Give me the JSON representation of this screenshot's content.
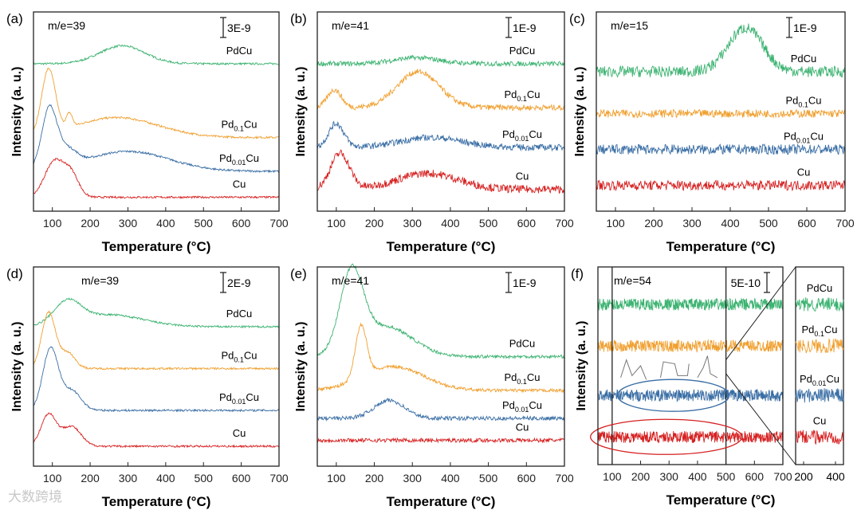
{
  "chart_data": [
    {
      "panel": "(a)",
      "type": "line",
      "annotation": "m/e=39",
      "scalebar": "3E-9",
      "xlabel": "Temperature (°C)",
      "ylabel": "Intensity (a. u.)",
      "xlim": [
        50,
        700
      ],
      "ylim": [
        0,
        10
      ],
      "xticks": [
        100,
        200,
        300,
        400,
        500,
        600,
        700
      ],
      "series": [
        {
          "name": "PdCu",
          "color": "#3cb371",
          "base": 7.4,
          "noise": 0.05,
          "peaks": [
            [
              285,
              0.9,
              60
            ]
          ]
        },
        {
          "name": "Pd0.1Cu",
          "color": "#f0a030",
          "base": 3.7,
          "noise": 0.05,
          "peaks": [
            [
              90,
              3.2,
              18
            ],
            [
              145,
              0.7,
              8
            ],
            [
              270,
              1.0,
              110
            ]
          ]
        },
        {
          "name": "Pd0.01Cu",
          "color": "#3a6ea5",
          "base": 2.0,
          "noise": 0.05,
          "peaks": [
            [
              92,
              3.0,
              20
            ],
            [
              140,
              0.8,
              25
            ],
            [
              300,
              1.0,
              110
            ]
          ]
        },
        {
          "name": "Cu",
          "color": "#d62020",
          "base": 0.7,
          "noise": 0.05,
          "peaks": [
            [
              105,
              1.8,
              25
            ],
            [
              150,
              1.1,
              20
            ]
          ]
        }
      ]
    },
    {
      "panel": "(b)",
      "type": "line",
      "annotation": "m/e=41",
      "scalebar": "1E-9",
      "xlabel": "Temperature (°C)",
      "ylabel": "Intensity (a. u.)",
      "xlim": [
        50,
        700
      ],
      "ylim": [
        0,
        10
      ],
      "xticks": [
        100,
        200,
        300,
        400,
        500,
        600,
        700
      ],
      "series": [
        {
          "name": "PdCu",
          "color": "#3cb371",
          "base": 7.4,
          "noise": 0.12,
          "peaks": [
            [
              310,
              0.3,
              60
            ]
          ]
        },
        {
          "name": "Pd0.1Cu",
          "color": "#f0a030",
          "base": 5.2,
          "noise": 0.14,
          "peaks": [
            [
              95,
              0.9,
              18
            ],
            [
              315,
              1.8,
              55
            ]
          ]
        },
        {
          "name": "Pd0.01Cu",
          "color": "#3a6ea5",
          "base": 3.2,
          "noise": 0.16,
          "peaks": [
            [
              100,
              1.2,
              20
            ],
            [
              350,
              0.5,
              80
            ]
          ]
        },
        {
          "name": "Cu",
          "color": "#d62020",
          "base": 1.1,
          "noise": 0.2,
          "peaks": [
            [
              110,
              1.8,
              25
            ],
            [
              340,
              0.8,
              80
            ]
          ]
        }
      ]
    },
    {
      "panel": "(c)",
      "type": "line",
      "annotation": "m/e=15",
      "scalebar": "1E-9",
      "xlabel": "Temperature (°C)",
      "ylabel": "Intensity (a. u.)",
      "xlim": [
        50,
        700
      ],
      "ylim": [
        0,
        10
      ],
      "xticks": [
        100,
        200,
        300,
        400,
        500,
        600,
        700
      ],
      "series": [
        {
          "name": "PdCu",
          "color": "#3cb371",
          "base": 7.0,
          "noise": 0.28,
          "peaks": [
            [
              440,
              2.2,
              45
            ]
          ]
        },
        {
          "name": "Pd0.1Cu",
          "color": "#f0a030",
          "base": 4.9,
          "noise": 0.2,
          "peaks": []
        },
        {
          "name": "Pd0.01Cu",
          "color": "#3a6ea5",
          "base": 3.1,
          "noise": 0.25,
          "peaks": []
        },
        {
          "name": "Cu",
          "color": "#d62020",
          "base": 1.3,
          "noise": 0.25,
          "peaks": []
        }
      ]
    },
    {
      "panel": "(d)",
      "type": "line",
      "annotation": "m/e=39",
      "scalebar": "2E-9",
      "xlabel": "Temperature (°C)",
      "ylabel": "Intensity (a. u.)",
      "xlim": [
        50,
        700
      ],
      "ylim": [
        0,
        10
      ],
      "xticks": [
        100,
        200,
        300,
        400,
        500,
        600,
        700
      ],
      "series": [
        {
          "name": "PdCu",
          "color": "#3cb371",
          "base": 7.0,
          "noise": 0.05,
          "peaks": [
            [
              140,
              1.1,
              35
            ],
            [
              250,
              0.6,
              90
            ]
          ]
        },
        {
          "name": "Pd0.1Cu",
          "color": "#f0a030",
          "base": 4.9,
          "noise": 0.05,
          "peaks": [
            [
              90,
              2.8,
              18
            ],
            [
              140,
              0.8,
              20
            ]
          ]
        },
        {
          "name": "Pd0.01Cu",
          "color": "#3a6ea5",
          "base": 2.8,
          "noise": 0.05,
          "peaks": [
            [
              95,
              3.1,
              20
            ],
            [
              150,
              1.0,
              25
            ]
          ]
        },
        {
          "name": "Cu",
          "color": "#d62020",
          "base": 1.0,
          "noise": 0.05,
          "peaks": [
            [
              90,
              1.6,
              20
            ],
            [
              150,
              1.0,
              25
            ]
          ]
        }
      ]
    },
    {
      "panel": "(e)",
      "type": "line",
      "annotation": "m/e=41",
      "scalebar": "1E-9",
      "xlabel": "Temperature (°C)",
      "ylabel": "Intensity (a. u.)",
      "xlim": [
        50,
        700
      ],
      "ylim": [
        0,
        10
      ],
      "xticks": [
        100,
        200,
        300,
        400,
        500,
        600,
        700
      ],
      "series": [
        {
          "name": "PdCu",
          "color": "#3cb371",
          "base": 5.5,
          "noise": 0.08,
          "peaks": [
            [
              140,
              3.9,
              30
            ],
            [
              230,
              1.5,
              70
            ]
          ]
        },
        {
          "name": "Pd0.1Cu",
          "color": "#f0a030",
          "base": 3.8,
          "noise": 0.08,
          "peaks": [
            [
              165,
              2.6,
              15
            ],
            [
              250,
              1.2,
              80
            ]
          ]
        },
        {
          "name": "Pd0.01Cu",
          "color": "#3a6ea5",
          "base": 2.4,
          "noise": 0.1,
          "peaks": [
            [
              240,
              0.9,
              40
            ]
          ]
        },
        {
          "name": "Cu",
          "color": "#d62020",
          "base": 1.3,
          "noise": 0.1,
          "peaks": []
        }
      ]
    },
    {
      "panel": "(f)",
      "type": "line",
      "annotation": "m/e=54",
      "scalebar": "5E-10",
      "xlabel": "Temperature (°C)",
      "ylabel": "Intensity (a. u.)",
      "xlim": [
        50,
        700
      ],
      "ylim": [
        0,
        10
      ],
      "xticks": [
        100,
        200,
        300,
        400,
        500,
        600,
        700
      ],
      "inset": {
        "xlim": [
          150,
          450
        ],
        "xticks": [
          200,
          400
        ]
      },
      "markers": [
        100,
        500
      ],
      "series": [
        {
          "name": "PdCu",
          "color": "#3cb371",
          "base": 8.1,
          "noise": 0.3,
          "peaks": []
        },
        {
          "name": "Pd0.1Cu",
          "color": "#f0a030",
          "base": 6.0,
          "noise": 0.3,
          "peaks": []
        },
        {
          "name": "Pd0.01Cu",
          "color": "#3a6ea5",
          "base": 3.5,
          "noise": 0.3,
          "peaks": []
        },
        {
          "name": "Cu",
          "color": "#d62020",
          "base": 1.4,
          "noise": 0.3,
          "peaks": []
        }
      ]
    }
  ],
  "watermark": "大数跨境"
}
